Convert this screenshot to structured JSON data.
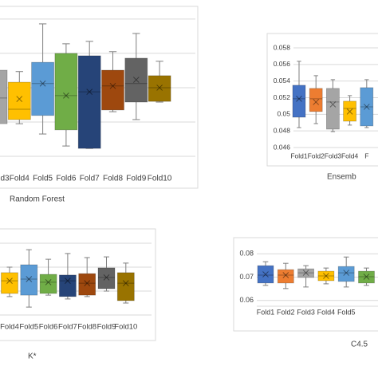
{
  "chart_data": [
    {
      "type": "box",
      "title": "Random Forest",
      "categories": [
        "d3",
        "Fold4",
        "Fold5",
        "Fold6",
        "Fold7",
        "Fold8",
        "Fold9",
        "Fold10"
      ],
      "boxes": [
        {
          "min": 0.84,
          "q1": 0.95,
          "median": 1.7,
          "q3": 2.51,
          "max": 2.7,
          "mean": 1.7,
          "color": "#a5a5a5"
        },
        {
          "min": 0.95,
          "q1": 1.07,
          "median": 1.37,
          "q3": 2.16,
          "max": 2.47,
          "mean": 1.67,
          "color": "#ffc000"
        },
        {
          "min": 0.65,
          "q1": 1.19,
          "median": 2.12,
          "q3": 2.74,
          "max": 3.86,
          "mean": 2.12,
          "color": "#5b9bd5"
        },
        {
          "min": 0.3,
          "q1": 0.77,
          "median": 1.77,
          "q3": 3.0,
          "max": 3.28,
          "mean": 1.77,
          "color": "#70ad47"
        },
        {
          "min": 0.23,
          "q1": 0.23,
          "median": 1.88,
          "q3": 2.93,
          "max": 3.35,
          "mean": 1.88,
          "color": "#264478"
        },
        {
          "min": 1.3,
          "q1": 1.35,
          "median": 2.05,
          "q3": 2.51,
          "max": 3.05,
          "mean": 2.05,
          "color": "#9e480e"
        },
        {
          "min": 1.07,
          "q1": 1.58,
          "median": 2.12,
          "q3": 2.86,
          "max": 3.58,
          "mean": 2.23,
          "color": "#636363"
        },
        {
          "min": 1.58,
          "q1": 1.6,
          "median": 2.0,
          "q3": 2.35,
          "max": 2.77,
          "mean": 2.0,
          "color": "#997300"
        }
      ],
      "ylim": [
        0,
        4.3
      ],
      "ygrid": [
        1,
        2,
        3,
        4
      ]
    },
    {
      "type": "box",
      "title": "Ensemb",
      "categories": [
        "Fold1",
        "Fold2",
        "Fold3",
        "Fold4",
        "F"
      ],
      "boxes": [
        {
          "min": 0.0484,
          "q1": 0.04965,
          "median": 0.05187,
          "q3": 0.0535,
          "max": 0.05638,
          "mean": 0.05187,
          "color": "#4472c4"
        },
        {
          "min": 0.04888,
          "q1": 0.05033,
          "median": 0.05187,
          "q3": 0.05312,
          "max": 0.05465,
          "mean": 0.05148,
          "color": "#ed7d31"
        },
        {
          "min": 0.04792,
          "q1": 0.04821,
          "median": 0.05148,
          "q3": 0.05312,
          "max": 0.05417,
          "mean": 0.05119,
          "color": "#a5a5a5"
        },
        {
          "min": 0.0487,
          "q1": 0.04917,
          "median": 0.05071,
          "q3": 0.05158,
          "max": 0.05225,
          "mean": 0.05033,
          "color": "#ffc000"
        },
        {
          "min": 0.0484,
          "q1": 0.0486,
          "median": 0.0509,
          "q3": 0.05321,
          "max": 0.05417,
          "mean": 0.0509,
          "color": "#5b9bd5"
        }
      ],
      "ylim": [
        0.046,
        0.058
      ],
      "yticks": [
        0.046,
        0.048,
        0.05,
        0.052,
        0.054,
        0.056,
        0.058
      ]
    },
    {
      "type": "box",
      "title": "K*",
      "categories": [
        "Fold4",
        "Fold5",
        "Fold6",
        "Fold7",
        "Fold8",
        "Fold9",
        "Fold10"
      ],
      "boxes": [
        {
          "min": 0.77,
          "q1": 0.9,
          "median": 1.43,
          "q3": 1.77,
          "max": 2.0,
          "mean": 1.43,
          "color": "#ffc000"
        },
        {
          "min": 0.33,
          "q1": 0.83,
          "median": 1.5,
          "q3": 2.1,
          "max": 2.73,
          "mean": 1.5,
          "color": "#5b9bd5"
        },
        {
          "min": 0.83,
          "q1": 0.9,
          "median": 1.37,
          "q3": 1.7,
          "max": 2.33,
          "mean": 1.37,
          "color": "#70ad47"
        },
        {
          "min": 0.67,
          "q1": 0.77,
          "median": 1.43,
          "q3": 1.67,
          "max": 2.57,
          "mean": 1.43,
          "color": "#264478"
        },
        {
          "min": 0.77,
          "q1": 0.83,
          "median": 1.33,
          "q3": 1.73,
          "max": 2.4,
          "mean": 1.33,
          "color": "#9e480e"
        },
        {
          "min": 1.0,
          "q1": 1.1,
          "median": 1.57,
          "q3": 1.97,
          "max": 2.43,
          "mean": 1.57,
          "color": "#636363"
        },
        {
          "min": 0.5,
          "q1": 0.6,
          "median": 1.33,
          "q3": 1.77,
          "max": 2.17,
          "mean": 1.33,
          "color": "#997300"
        }
      ],
      "ylim": [
        0,
        3.3
      ],
      "ygrid": [
        1,
        2,
        3
      ]
    },
    {
      "type": "box",
      "title": "C4.5",
      "categories": [
        "Fold1",
        "Fold2",
        "Fold3",
        "Fold4",
        "Fold5",
        null
      ],
      "boxes": [
        {
          "min": 0.06644,
          "q1": 0.06746,
          "median": 0.07085,
          "q3": 0.07492,
          "max": 0.07661,
          "mean": 0.07119,
          "color": "#4472c4"
        },
        {
          "min": 0.06508,
          "q1": 0.06746,
          "median": 0.07085,
          "q3": 0.07322,
          "max": 0.07593,
          "mean": 0.07085,
          "color": "#ed7d31"
        },
        {
          "min": 0.06576,
          "q1": 0.06983,
          "median": 0.07186,
          "q3": 0.07356,
          "max": 0.07492,
          "mean": 0.07186,
          "color": "#a5a5a5"
        },
        {
          "min": 0.06712,
          "q1": 0.06847,
          "median": 0.07051,
          "q3": 0.07254,
          "max": 0.0739,
          "mean": 0.07051,
          "color": "#ffc000"
        },
        {
          "min": 0.06576,
          "q1": 0.06814,
          "median": 0.07186,
          "q3": 0.07458,
          "max": 0.07864,
          "mean": 0.07186,
          "color": "#5b9bd5"
        },
        {
          "min": 0.06644,
          "q1": 0.06746,
          "median": 0.07017,
          "q3": 0.07254,
          "max": 0.0739,
          "mean": 0.07017,
          "color": "#70ad47"
        }
      ],
      "ylim": [
        0.0575,
        0.0825
      ],
      "yticks": [
        0.06,
        0.07,
        0.08
      ]
    }
  ]
}
